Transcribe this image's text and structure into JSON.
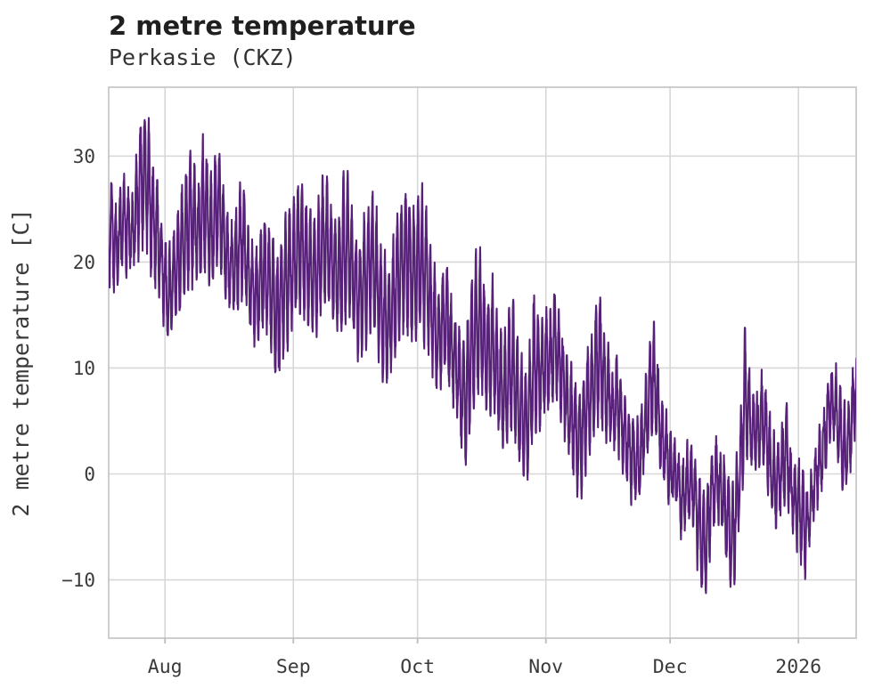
{
  "header": {
    "title": "2 metre temperature",
    "subtitle": "Perkasie (CKZ)"
  },
  "chart_data": {
    "type": "line",
    "title": "2 metre temperature",
    "subtitle": "Perkasie (CKZ)",
    "xlabel": "",
    "ylabel": "2 metre temperature [C]",
    "grid": true,
    "legend": "none",
    "line_color": "#582179",
    "background": "#ffffff",
    "ylim": [
      -15.5,
      36.5
    ],
    "yticks": [
      {
        "value": 30,
        "label": "30"
      },
      {
        "value": 20,
        "label": "20"
      },
      {
        "value": 10,
        "label": "10"
      },
      {
        "value": 0,
        "label": "0"
      },
      {
        "value": -10,
        "label": "−10"
      }
    ],
    "xticks": [
      {
        "label": "Aug",
        "day": 14
      },
      {
        "label": "Sep",
        "day": 45
      },
      {
        "label": "Oct",
        "day": 75
      },
      {
        "label": "Nov",
        "day": 106
      },
      {
        "label": "Dec",
        "day": 136
      },
      {
        "label": "2026",
        "day": 167
      }
    ],
    "xlim_days": [
      0.4,
      180.95
    ],
    "sampling": "hourly",
    "series": [
      {
        "name": "2 metre temperature",
        "units": "C",
        "daily_min": [
          18,
          19,
          17,
          18,
          19,
          20,
          19,
          20,
          21,
          22,
          21,
          19,
          18,
          17,
          14,
          13,
          13.5,
          15,
          16,
          17,
          18,
          19,
          18,
          19,
          20,
          18,
          19,
          20,
          18,
          16,
          15,
          15.5,
          16,
          17,
          15,
          13,
          12,
          13,
          14,
          13,
          11,
          8,
          10,
          12,
          13,
          14,
          15,
          16,
          15,
          14,
          13,
          14,
          15,
          16,
          15,
          14,
          13,
          14,
          15,
          14,
          12,
          11,
          12,
          13,
          14,
          13,
          11,
          9,
          8,
          10,
          12,
          13,
          14,
          13,
          12,
          13,
          14,
          13,
          11,
          9,
          8,
          9,
          10,
          8,
          6,
          4,
          2,
          0.8,
          5,
          7,
          8,
          7,
          6,
          7,
          5,
          3,
          1.5,
          3,
          4,
          2,
          0,
          -1.5,
          0,
          2,
          4,
          5,
          6,
          7,
          8,
          7,
          5,
          3,
          1,
          -1,
          -2,
          0,
          2,
          3,
          4,
          5,
          4,
          3,
          2,
          3,
          2,
          0,
          -1,
          -2,
          -3,
          -1,
          1,
          3,
          4,
          2,
          0,
          -1,
          -2,
          -3,
          -4,
          -6,
          -5,
          -4,
          -5,
          -9,
          -12.6,
          -10,
          -6,
          -4,
          -5,
          -7,
          -9,
          -12.2,
          -8,
          -3,
          0,
          2,
          1,
          0,
          2,
          1,
          -2,
          -4,
          -5,
          -3,
          -1,
          -4,
          -6,
          -7,
          -8.5,
          -9,
          -6,
          -4,
          -2,
          0,
          2,
          4,
          3,
          0,
          -2.5,
          -1,
          2,
          5
        ],
        "daily_max": [
          24,
          29.5,
          25,
          26.5,
          28,
          27,
          25.5,
          30,
          33,
          34,
          33.5,
          29.5,
          28,
          25,
          22,
          21,
          23,
          25,
          26,
          28,
          30,
          29,
          27,
          31.5,
          30.5,
          28,
          30,
          31.3,
          27,
          24,
          23,
          25,
          26.5,
          27,
          24,
          22,
          21,
          23,
          25,
          24,
          22,
          20,
          23,
          24,
          25,
          26,
          27,
          28,
          26,
          25,
          24,
          26,
          27.5,
          28.5,
          26,
          25,
          24,
          27,
          28,
          26,
          23,
          22,
          24,
          26,
          27.5,
          25,
          22,
          20,
          19,
          22,
          24,
          26,
          28,
          26,
          25,
          26,
          27,
          25,
          22,
          19,
          18,
          19.5,
          20,
          17,
          15,
          14,
          13,
          15,
          18,
          20,
          21,
          19,
          17,
          18.5,
          16,
          14,
          13,
          15,
          16,
          13,
          11,
          10,
          12,
          17.5,
          16,
          14,
          15,
          16,
          17.5,
          15,
          13,
          11,
          10,
          9,
          8,
          10,
          12,
          13,
          16,
          17.5,
          14,
          12,
          10,
          11,
          9,
          7,
          6,
          5,
          4,
          6,
          9,
          12,
          14.5,
          10,
          7,
          5,
          4,
          3,
          2,
          1,
          2,
          3,
          2,
          0,
          -2,
          -1,
          2,
          3,
          2,
          1,
          0,
          -1,
          1,
          5,
          14,
          10,
          8,
          7,
          9.6,
          8,
          5,
          3,
          2,
          4,
          7.5,
          3,
          1,
          1,
          0,
          -1,
          0,
          2,
          4,
          6,
          8,
          10,
          10.3,
          8,
          6,
          7,
          9,
          10.5
        ]
      }
    ]
  }
}
